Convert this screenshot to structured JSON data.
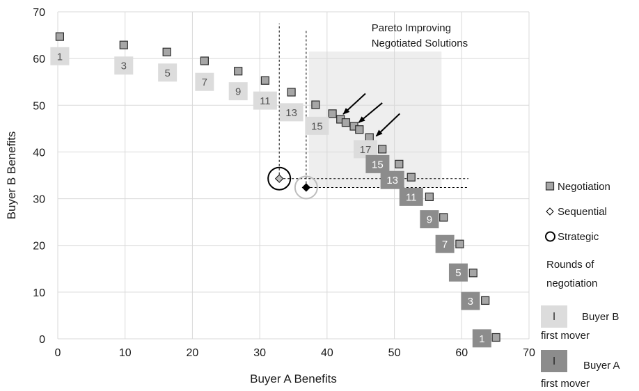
{
  "chart_data": {
    "type": "scatter",
    "xlabel": "Buyer A Benefits",
    "ylabel": "Buyer B Benefits",
    "xlim": [
      0,
      70
    ],
    "ylim": [
      0,
      70
    ],
    "xticks": [
      "0",
      "10",
      "20",
      "30",
      "40",
      "50",
      "60",
      "70"
    ],
    "yticks": [
      "0",
      "10",
      "20",
      "30",
      "40",
      "50",
      "60",
      "70"
    ],
    "grid": "horizontal and vertical",
    "series": [
      {
        "name": "Negotiation",
        "marker": "square",
        "color": "#a6a6a6",
        "points": [
          [
            0.3,
            64.7
          ],
          [
            9.8,
            62.9
          ],
          [
            16.2,
            61.4
          ],
          [
            21.8,
            59.5
          ],
          [
            26.8,
            57.3
          ],
          [
            30.8,
            55.3
          ],
          [
            34.7,
            52.8
          ],
          [
            38.3,
            50.1
          ],
          [
            40.8,
            48.2
          ],
          [
            42.0,
            47.0
          ],
          [
            42.8,
            46.3
          ],
          [
            44.0,
            45.5
          ],
          [
            44.8,
            44.8
          ],
          [
            46.3,
            43.1
          ],
          [
            48.2,
            40.6
          ],
          [
            50.7,
            37.4
          ],
          [
            52.5,
            34.6
          ],
          [
            55.2,
            30.4
          ],
          [
            57.3,
            26.0
          ],
          [
            59.7,
            20.3
          ],
          [
            61.7,
            14.1
          ],
          [
            63.5,
            8.2
          ],
          [
            65.1,
            0.3
          ]
        ]
      },
      {
        "name": "Sequential",
        "marker": "diamond",
        "points": [
          [
            32.9,
            34.3
          ],
          [
            36.9,
            32.4
          ]
        ]
      },
      {
        "name": "Strategic",
        "marker": "circle",
        "points": [
          [
            32.9,
            34.3
          ],
          [
            36.9,
            32.4
          ]
        ]
      }
    ],
    "round_labels_buyer_b_first": [
      {
        "label": "1",
        "x": 0.3,
        "y": 60.5
      },
      {
        "label": "3",
        "x": 9.8,
        "y": 58.5
      },
      {
        "label": "5",
        "x": 16.3,
        "y": 57.0
      },
      {
        "label": "7",
        "x": 21.8,
        "y": 55.0
      },
      {
        "label": "9",
        "x": 26.8,
        "y": 53.0
      },
      {
        "label": "11",
        "x": 30.8,
        "y": 51.0
      },
      {
        "label": "13",
        "x": 34.7,
        "y": 48.5
      },
      {
        "label": "15",
        "x": 38.5,
        "y": 45.6
      },
      {
        "label": "17",
        "x": 45.7,
        "y": 40.6
      }
    ],
    "round_labels_buyer_a_first": [
      {
        "label": "15",
        "x": 47.5,
        "y": 37.4
      },
      {
        "label": "13",
        "x": 49.7,
        "y": 34.0
      },
      {
        "label": "11",
        "x": 52.5,
        "y": 30.4
      },
      {
        "label": "9",
        "x": 55.2,
        "y": 25.6
      },
      {
        "label": "7",
        "x": 57.5,
        "y": 20.3
      },
      {
        "label": "5",
        "x": 59.5,
        "y": 14.2
      },
      {
        "label": "3",
        "x": 61.3,
        "y": 8.1
      },
      {
        "label": "1",
        "x": 63.0,
        "y": 0.1
      }
    ],
    "pareto_region": {
      "x": [
        37.3,
        57.0
      ],
      "y": [
        32.4,
        61.5
      ]
    },
    "reference_lines": [
      {
        "kind": "vertical",
        "x": 32.9,
        "from_y": 34.3,
        "to_y": 67.5
      },
      {
        "kind": "vertical",
        "x": 36.9,
        "from_y": 32.4,
        "to_y": 66.0
      },
      {
        "kind": "horizontal",
        "y": 34.3,
        "from_x": 32.9,
        "to_x": 61.0
      },
      {
        "kind": "horizontal",
        "y": 32.4,
        "from_x": 36.9,
        "to_x": 61.0
      }
    ],
    "annotation": {
      "lines": [
        "Pareto Improving",
        "Negotiated Solutions"
      ],
      "arrows": [
        {
          "from": [
            45.7,
            52.5
          ],
          "to": [
            42.4,
            48.1
          ]
        },
        {
          "from": [
            48.2,
            50.5
          ],
          "to": [
            44.7,
            46.3
          ]
        },
        {
          "from": [
            50.8,
            48.2
          ],
          "to": [
            47.3,
            43.4
          ]
        }
      ]
    },
    "legend": {
      "position": "right",
      "items": [
        "Negotiation",
        "Sequential",
        "Strategic"
      ],
      "rounds_title": [
        "Rounds of",
        "negotiation"
      ],
      "buyer_b_swatch_label": "l",
      "buyer_b_text": [
        "Buyer B",
        "first mover"
      ],
      "buyer_a_swatch_label": "l",
      "buyer_a_text": [
        "Buyer A",
        "first mover"
      ]
    },
    "colors": {
      "grid": "#d9d9d9",
      "marker_fill": "#a6a6a6",
      "marker_stroke": "#2b2b2b",
      "buyer_b_label_bg": "#dcdcdc",
      "buyer_b_label_text": "#555555",
      "buyer_a_label_bg": "#8c8c8c",
      "buyer_a_label_text": "#ffffff",
      "pareto_region": "#eeeeee"
    }
  }
}
